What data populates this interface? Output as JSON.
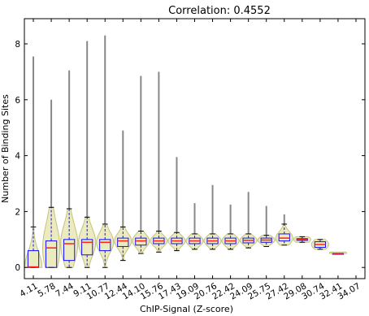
{
  "chart_data": {
    "type": "box-violin",
    "title": "Correlation: 0.4552",
    "xlabel": "ChIP-Signal (Z-score)",
    "ylabel": "Number of Binding Sites",
    "ylim": [
      -0.4,
      8.9
    ],
    "yticks": [
      0,
      2,
      4,
      6,
      8
    ],
    "categories": [
      "4.11",
      "5.78",
      "7.44",
      "9.11",
      "10.77",
      "12.44",
      "14.10",
      "15.76",
      "17.43",
      "19.09",
      "20.76",
      "22.42",
      "24.09",
      "25.75",
      "27.42",
      "29.08",
      "30.74",
      "32.41",
      "34.07"
    ],
    "grid": false,
    "boxes": [
      {
        "min": 0,
        "q1": 0,
        "median": 0.02,
        "q3": 0.6,
        "max": 1.45,
        "outlier_max": 7.55
      },
      {
        "min": 0,
        "q1": 0,
        "median": 0.7,
        "q3": 0.95,
        "max": 2.15,
        "outlier_max": 6.0
      },
      {
        "min": 0,
        "q1": 0.25,
        "median": 0.85,
        "q3": 1.0,
        "max": 2.1,
        "outlier_max": 7.05
      },
      {
        "min": 0,
        "q1": 0.45,
        "median": 0.9,
        "q3": 1.0,
        "max": 1.8,
        "outlier_max": 8.1
      },
      {
        "min": 0,
        "q1": 0.6,
        "median": 0.9,
        "q3": 1.0,
        "max": 1.55,
        "outlier_max": 8.3
      },
      {
        "min": 0.25,
        "q1": 0.75,
        "median": 0.95,
        "q3": 1.05,
        "max": 1.45,
        "outlier_max": 4.9
      },
      {
        "min": 0.5,
        "q1": 0.8,
        "median": 0.95,
        "q3": 1.05,
        "max": 1.3,
        "outlier_max": 6.85
      },
      {
        "min": 0.55,
        "q1": 0.85,
        "median": 0.95,
        "q3": 1.05,
        "max": 1.3,
        "outlier_max": 7.0
      },
      {
        "min": 0.6,
        "q1": 0.85,
        "median": 0.95,
        "q3": 1.05,
        "max": 1.25,
        "outlier_max": 3.95
      },
      {
        "min": 0.65,
        "q1": 0.85,
        "median": 0.95,
        "q3": 1.05,
        "max": 1.2,
        "outlier_max": 2.3
      },
      {
        "min": 0.65,
        "q1": 0.85,
        "median": 0.95,
        "q3": 1.05,
        "max": 1.2,
        "outlier_max": 2.95
      },
      {
        "min": 0.65,
        "q1": 0.85,
        "median": 0.95,
        "q3": 1.05,
        "max": 1.2,
        "outlier_max": 2.25
      },
      {
        "min": 0.7,
        "q1": 0.88,
        "median": 0.97,
        "q3": 1.05,
        "max": 1.2,
        "outlier_max": 2.7
      },
      {
        "min": 0.75,
        "q1": 0.9,
        "median": 0.98,
        "q3": 1.05,
        "max": 1.15,
        "outlier_max": 2.2
      },
      {
        "min": 0.8,
        "q1": 0.95,
        "median": 1.05,
        "q3": 1.2,
        "max": 1.55,
        "outlier_max": 1.9
      },
      {
        "min": 0.9,
        "q1": 0.97,
        "median": 1.0,
        "q3": 1.03,
        "max": 1.1,
        "outlier_max": 1.1
      },
      {
        "min": 0.65,
        "q1": 0.72,
        "median": 0.82,
        "q3": 0.92,
        "max": 1.0,
        "outlier_max": 1.0
      },
      {
        "min": 0.5,
        "q1": 0.5,
        "median": 0.5,
        "q3": 0.5,
        "max": 0.5,
        "outlier_max": 0.5
      },
      null
    ],
    "colors": {
      "violin_fill": "#ecebc0",
      "violin_stroke": "#c4c27a",
      "box": "#1010ff",
      "median": "#ff2020",
      "outlier_line": "#888888"
    }
  }
}
